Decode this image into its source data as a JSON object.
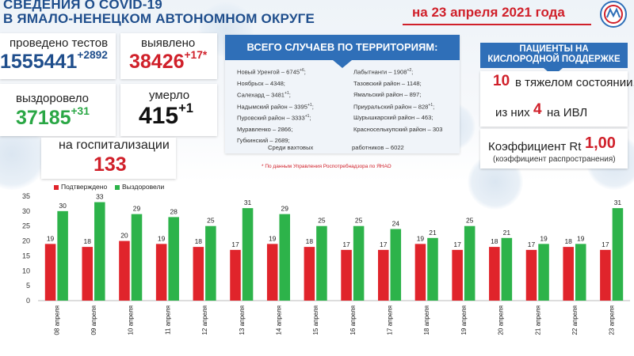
{
  "header": {
    "title_line1": "СВЕДЕНИЯ О COVID-19",
    "title_line2": "В ЯМАЛО-НЕНЕЦКОМ АВТОНОМНОМ ОКРУГЕ",
    "date": "на 23 апреля 2021 года"
  },
  "stats": {
    "tests_label": "проведено тестов",
    "tests_value": "1555441",
    "tests_delta": "+2892",
    "detected_label": "выявлено",
    "detected_value": "38426",
    "detected_delta": "+17*",
    "recovered_label": "выздоровело",
    "recovered_value": "37185",
    "recovered_delta": "+31",
    "died_label": "умерло",
    "died_value": "415",
    "died_delta": "+1",
    "hosp_label": "на госпитализации",
    "hosp_value": "133"
  },
  "territories": {
    "header": "ВСЕГО СЛУЧАЕВ ПО ТЕРРИТОРИЯМ:",
    "left": [
      {
        "text": "Новый Уренгой – 6745",
        "sup": "+6"
      },
      {
        "text": "Ноябрьск – 4348;",
        "sup": ""
      },
      {
        "text": "Салехард – 3481",
        "sup": "+1"
      },
      {
        "text": "Надымский район – 3395",
        "sup": "+1"
      },
      {
        "text": "Пуровский район – 3333",
        "sup": "+1"
      },
      {
        "text": "Муравленко – 2866;",
        "sup": ""
      },
      {
        "text": "Губкинский – 2689;",
        "sup": ""
      }
    ],
    "right": [
      {
        "text": "Лабытнанги – 1908",
        "sup": "+2"
      },
      {
        "text": "Тазовский район – 1148;",
        "sup": ""
      },
      {
        "text": "Ямальский район – 897;",
        "sup": ""
      },
      {
        "text": "Приуральский район – 828",
        "sup": "+1"
      },
      {
        "text": "Шурышкарский район – 463;",
        "sup": ""
      },
      {
        "text": "Красноселькупский район – 303",
        "sup": ""
      }
    ],
    "shift_a": "Среди вахтовых",
    "shift_b": "работников – 6022",
    "note": "* По данным Управления  Роспотребнадзора по ЯНАО"
  },
  "oxygen": {
    "header_line1": "ПАЦИЕНТЫ НА",
    "header_line2": "КИСЛОРОДНОЙ ПОДДЕРЖКЕ",
    "severe_value": "10",
    "severe_label": "в тяжелом состоянии,",
    "ivl_prefix": "из них",
    "ivl_value": "4",
    "ivl_label": "на  ИВЛ",
    "rt_label": "Коэффициент Rt",
    "rt_value": "1,00",
    "rt_note": "(коэффициент распространения)"
  },
  "colors": {
    "confirmed": "#e0242b",
    "recovered": "#2db34a",
    "accent_blue": "#2f6fb8",
    "title_blue": "#1f4e8c"
  },
  "chart_data": {
    "type": "bar",
    "categories": [
      "08 апреля",
      "09 апреля",
      "10 апреля",
      "11 апреля",
      "12 апреля",
      "13 апреля",
      "14 апреля",
      "15 апреля",
      "16 апреля",
      "17 апреля",
      "18 апреля",
      "19 апреля",
      "20 апреля",
      "21 апреля",
      "22 апреля",
      "23 апреля"
    ],
    "series": [
      {
        "name": "Подтверждено",
        "values": [
          19,
          18,
          20,
          19,
          18,
          17,
          19,
          18,
          17,
          17,
          19,
          17,
          18,
          17,
          18,
          17
        ]
      },
      {
        "name": "Выздоровели",
        "values": [
          30,
          33,
          29,
          28,
          25,
          31,
          29,
          25,
          25,
          24,
          21,
          25,
          21,
          19,
          19,
          31
        ]
      }
    ],
    "ylim": [
      0,
      35
    ],
    "yticks": [
      0,
      5,
      10,
      15,
      20,
      25,
      30,
      35
    ],
    "grid": false,
    "legend": "top-left"
  }
}
